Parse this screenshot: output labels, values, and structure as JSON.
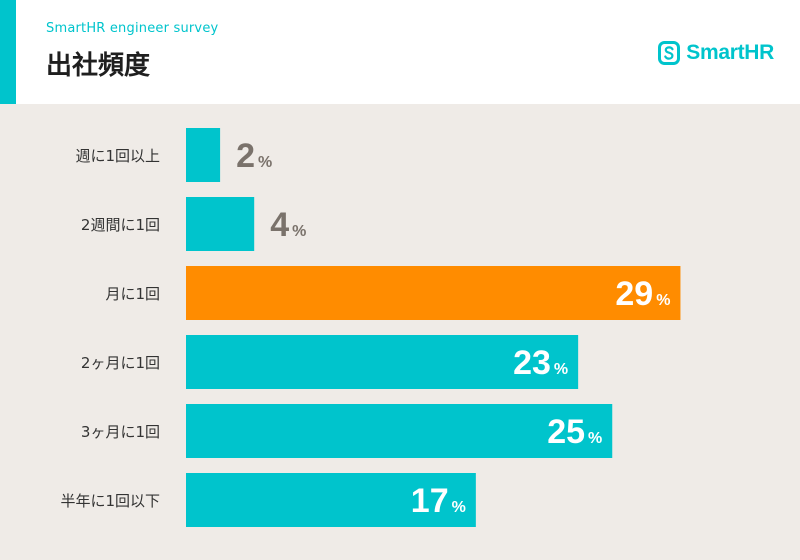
{
  "header": {
    "subtitle": "SmartHR engineer survey",
    "title": "出社頻度",
    "brand": "SmartHR"
  },
  "colors": {
    "accent": "#00c4cc",
    "highlight": "#ff8c00",
    "value_on_light": "#7a726b",
    "value_on_bar": "#ffffff",
    "label": "#333333",
    "background": "#efebe7"
  },
  "chart_data": {
    "type": "bar",
    "orientation": "horizontal",
    "categories": [
      "週に1回以上",
      "2週間に1回",
      "月に1回",
      "2ヶ月に1回",
      "3ヶ月に1回",
      "半年に1回以下"
    ],
    "values": [
      2,
      4,
      29,
      23,
      25,
      17
    ],
    "unit": "%",
    "highlight_index": 2,
    "grid": false
  }
}
